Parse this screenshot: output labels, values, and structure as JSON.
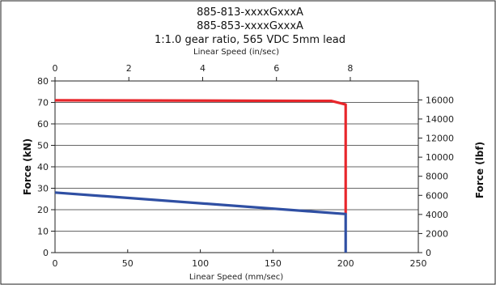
{
  "chart_data": {
    "type": "line",
    "title_lines": [
      "885-813-xxxxGxxxA",
      "885-853-xxxxGxxxA",
      "1:1.0 gear ratio, 565 VDC 5mm lead"
    ],
    "top_xlabel": "Linear Speed (in/sec)",
    "xlabel": "Linear Speed (mm/sec)",
    "ylabel_left": "Force (kN)",
    "ylabel_right": "Force (lbf)",
    "x_ticks": [
      0,
      50,
      100,
      150,
      200,
      250
    ],
    "x_top_ticks": [
      0,
      2,
      4,
      6,
      8
    ],
    "y_left_ticks": [
      0,
      10,
      20,
      30,
      40,
      50,
      60,
      70,
      80
    ],
    "y_right_ticks": [
      0,
      2000,
      4000,
      6000,
      8000,
      10000,
      12000,
      14000,
      16000
    ],
    "xlim": [
      0,
      250
    ],
    "top_xlim_in_per_sec": [
      0,
      9.843
    ],
    "ylim_left": [
      0,
      80
    ],
    "ylim_right_lbf": [
      0,
      17985
    ],
    "grid": "horizontal",
    "series": [
      {
        "color": "#e8262b",
        "x": [
          0,
          190,
          200,
          200
        ],
        "y": [
          71,
          70.7,
          69,
          18
        ]
      },
      {
        "color": "#2f4fa3",
        "x": [
          0,
          200,
          200
        ],
        "y": [
          28,
          18,
          0
        ]
      }
    ]
  }
}
